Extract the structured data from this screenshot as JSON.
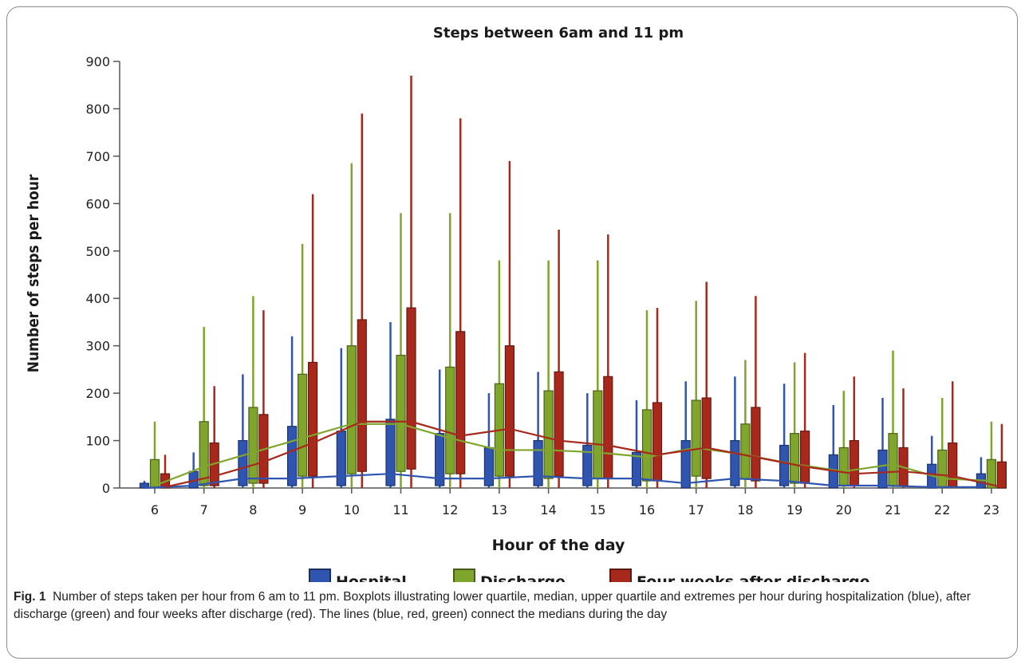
{
  "chart_data": {
    "type": "box",
    "title": "Steps between 6am and 11 pm",
    "xlabel": "Hour of the day",
    "ylabel": "Number of steps per hour",
    "ylim": [
      0,
      900
    ],
    "yticks": [
      0,
      100,
      200,
      300,
      400,
      500,
      600,
      700,
      800,
      900
    ],
    "categories": [
      "6",
      "7",
      "8",
      "9",
      "10",
      "11",
      "12",
      "13",
      "14",
      "15",
      "16",
      "17",
      "18",
      "19",
      "20",
      "21",
      "22",
      "23"
    ],
    "legend_position": "bottom",
    "series": [
      {
        "name": "Hospital",
        "color": "#2f55b0",
        "boxes": [
          {
            "min": 0,
            "q1": 0,
            "median": 0,
            "q3": 10,
            "max": 15
          },
          {
            "min": 0,
            "q1": 0,
            "median": 5,
            "q3": 35,
            "max": 75
          },
          {
            "min": 0,
            "q1": 5,
            "median": 20,
            "q3": 100,
            "max": 240
          },
          {
            "min": 0,
            "q1": 5,
            "median": 20,
            "q3": 130,
            "max": 320
          },
          {
            "min": 0,
            "q1": 5,
            "median": 25,
            "q3": 120,
            "max": 295
          },
          {
            "min": 0,
            "q1": 5,
            "median": 30,
            "q3": 145,
            "max": 350
          },
          {
            "min": 0,
            "q1": 5,
            "median": 20,
            "q3": 115,
            "max": 250
          },
          {
            "min": 0,
            "q1": 5,
            "median": 20,
            "q3": 85,
            "max": 200
          },
          {
            "min": 0,
            "q1": 5,
            "median": 25,
            "q3": 100,
            "max": 245
          },
          {
            "min": 0,
            "q1": 5,
            "median": 20,
            "q3": 90,
            "max": 200
          },
          {
            "min": 0,
            "q1": 5,
            "median": 20,
            "q3": 75,
            "max": 185
          },
          {
            "min": 0,
            "q1": 0,
            "median": 10,
            "q3": 100,
            "max": 225
          },
          {
            "min": 0,
            "q1": 5,
            "median": 20,
            "q3": 100,
            "max": 235
          },
          {
            "min": 0,
            "q1": 5,
            "median": 15,
            "q3": 90,
            "max": 220
          },
          {
            "min": 0,
            "q1": 0,
            "median": 5,
            "q3": 70,
            "max": 175
          },
          {
            "min": 0,
            "q1": 0,
            "median": 5,
            "q3": 80,
            "max": 190
          },
          {
            "min": 0,
            "q1": 0,
            "median": 2,
            "q3": 50,
            "max": 110
          },
          {
            "min": 0,
            "q1": 0,
            "median": 2,
            "q3": 30,
            "max": 65
          }
        ]
      },
      {
        "name": "Discharge",
        "color": "#7fa52c",
        "boxes": [
          {
            "min": 0,
            "q1": 0,
            "median": 5,
            "q3": 60,
            "max": 140
          },
          {
            "min": 0,
            "q1": 5,
            "median": 45,
            "q3": 140,
            "max": 340
          },
          {
            "min": 0,
            "q1": 10,
            "median": 75,
            "q3": 170,
            "max": 405
          },
          {
            "min": 0,
            "q1": 25,
            "median": 105,
            "q3": 240,
            "max": 515
          },
          {
            "min": 0,
            "q1": 30,
            "median": 135,
            "q3": 300,
            "max": 685
          },
          {
            "min": 0,
            "q1": 35,
            "median": 135,
            "q3": 280,
            "max": 580
          },
          {
            "min": 0,
            "q1": 30,
            "median": 105,
            "q3": 255,
            "max": 580
          },
          {
            "min": 0,
            "q1": 25,
            "median": 80,
            "q3": 220,
            "max": 480
          },
          {
            "min": 0,
            "q1": 20,
            "median": 80,
            "q3": 205,
            "max": 480
          },
          {
            "min": 0,
            "q1": 20,
            "median": 75,
            "q3": 205,
            "max": 480
          },
          {
            "min": 0,
            "q1": 15,
            "median": 65,
            "q3": 165,
            "max": 375
          },
          {
            "min": 0,
            "q1": 25,
            "median": 85,
            "q3": 185,
            "max": 395
          },
          {
            "min": 0,
            "q1": 20,
            "median": 70,
            "q3": 135,
            "max": 270
          },
          {
            "min": 0,
            "q1": 10,
            "median": 50,
            "q3": 115,
            "max": 265
          },
          {
            "min": 0,
            "q1": 5,
            "median": 35,
            "q3": 85,
            "max": 205
          },
          {
            "min": 0,
            "q1": 5,
            "median": 50,
            "q3": 115,
            "max": 290
          },
          {
            "min": 0,
            "q1": 2,
            "median": 20,
            "q3": 80,
            "max": 190
          },
          {
            "min": 0,
            "q1": 0,
            "median": 15,
            "q3": 60,
            "max": 140
          }
        ]
      },
      {
        "name": "Four weeks after discharge",
        "color": "#a8291c",
        "boxes": [
          {
            "min": 0,
            "q1": 0,
            "median": 2,
            "q3": 30,
            "max": 70
          },
          {
            "min": 0,
            "q1": 5,
            "median": 25,
            "q3": 95,
            "max": 215
          },
          {
            "min": 0,
            "q1": 10,
            "median": 55,
            "q3": 155,
            "max": 375
          },
          {
            "min": 0,
            "q1": 25,
            "median": 95,
            "q3": 265,
            "max": 620
          },
          {
            "min": 0,
            "q1": 35,
            "median": 140,
            "q3": 355,
            "max": 790
          },
          {
            "min": 0,
            "q1": 40,
            "median": 140,
            "q3": 380,
            "max": 870
          },
          {
            "min": 0,
            "q1": 30,
            "median": 110,
            "q3": 330,
            "max": 780
          },
          {
            "min": 0,
            "q1": 25,
            "median": 125,
            "q3": 300,
            "max": 690
          },
          {
            "min": 0,
            "q1": 25,
            "median": 100,
            "q3": 245,
            "max": 545
          },
          {
            "min": 0,
            "q1": 20,
            "median": 90,
            "q3": 235,
            "max": 535
          },
          {
            "min": 0,
            "q1": 15,
            "median": 70,
            "q3": 180,
            "max": 380
          },
          {
            "min": 0,
            "q1": 20,
            "median": 85,
            "q3": 190,
            "max": 435
          },
          {
            "min": 0,
            "q1": 15,
            "median": 65,
            "q3": 170,
            "max": 405
          },
          {
            "min": 0,
            "q1": 10,
            "median": 45,
            "q3": 120,
            "max": 285
          },
          {
            "min": 0,
            "q1": 5,
            "median": 30,
            "q3": 100,
            "max": 235
          },
          {
            "min": 0,
            "q1": 5,
            "median": 35,
            "q3": 85,
            "max": 210
          },
          {
            "min": 0,
            "q1": 2,
            "median": 25,
            "q3": 95,
            "max": 225
          },
          {
            "min": 0,
            "q1": 0,
            "median": 2,
            "q3": 55,
            "max": 135
          }
        ]
      }
    ]
  },
  "caption": {
    "label": "Fig. 1",
    "text": "Number of steps taken per hour from 6 am to 11 pm. Boxplots illustrating lower quartile, median, upper quartile and extremes per hour during hospitalization (blue), after discharge (green) and four weeks after discharge (red). The lines (blue, red, green) connect the medians during the day"
  }
}
